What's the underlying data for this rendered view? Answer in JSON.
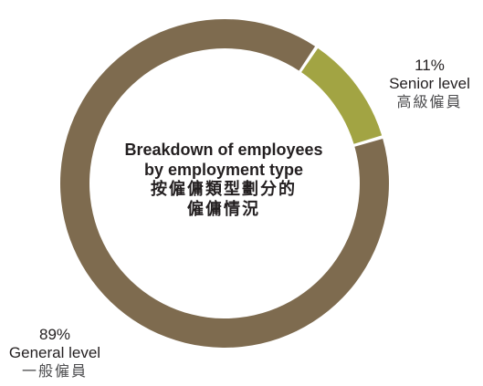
{
  "chart_data": {
    "type": "pie",
    "variant": "donut",
    "title_lines": [
      "Breakdown of employees",
      "by employment type",
      "按僱傭類型劃分的",
      "僱傭情況"
    ],
    "slices": [
      {
        "value": 11,
        "pct_label": "11%",
        "label_en": "Senior level",
        "label_cn": "高級僱員",
        "color": "#a2a443"
      },
      {
        "value": 89,
        "pct_label": "89%",
        "label_en": "General level",
        "label_cn": "一般僱員",
        "color": "#7e6b4f"
      }
    ],
    "legend": "none",
    "grid": false
  }
}
